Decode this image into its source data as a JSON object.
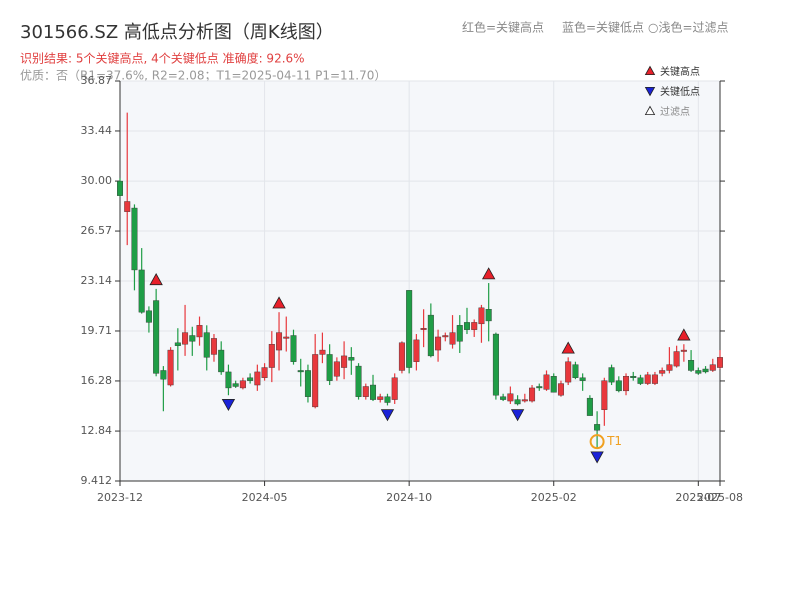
{
  "chart_data": {
    "type": "candlestick",
    "title": "301566.SZ 高低点分析图（周K线图）",
    "header_legend": [
      "红色=关键高点",
      "蓝色=关键低点",
      "○浅色=过滤点"
    ],
    "subtitle": "识别结果: 5个关键高点, 4个关键低点  准确度: 92.6%",
    "note": "优质：否（R1=37.6%, R2=2.08；T1=2025-04-11 P1=11.70）",
    "up_color": "#e8383d",
    "down_color": "#1f9d46",
    "ylim": [
      9.412,
      36.87
    ],
    "yticks": [
      9.412,
      12.84,
      16.28,
      19.71,
      23.14,
      26.57,
      {
        "value": 30,
        "label": "30.00"
      },
      33.44,
      36.87
    ],
    "grid": true,
    "categories": [
      "2023-12",
      null,
      null,
      null,
      null,
      null,
      null,
      null,
      null,
      null,
      null,
      null,
      null,
      null,
      null,
      null,
      null,
      null,
      null,
      null,
      "2024-05",
      null,
      null,
      null,
      null,
      null,
      null,
      null,
      null,
      null,
      null,
      null,
      null,
      null,
      null,
      null,
      null,
      null,
      null,
      null,
      "2024-10",
      null,
      null,
      null,
      null,
      null,
      null,
      null,
      null,
      null,
      null,
      null,
      null,
      null,
      null,
      null,
      null,
      null,
      null,
      null,
      "2025-02",
      null,
      null,
      null,
      null,
      null,
      null,
      null,
      null,
      null,
      null,
      null,
      null,
      null,
      null,
      null,
      null,
      null,
      null,
      null,
      "2025-07",
      null,
      null,
      "2025-08"
    ],
    "open": [
      30.0,
      27.9,
      28.15,
      23.9,
      21.1,
      21.8,
      17.0,
      16.0,
      18.9,
      18.8,
      19.4,
      19.3,
      19.6,
      18.1,
      18.4,
      16.9,
      16.1,
      15.8,
      16.5,
      16.0,
      16.5,
      17.2,
      18.4,
      19.2,
      19.4,
      17.0,
      17.0,
      14.5,
      18.1,
      18.1,
      16.6,
      17.2,
      17.9,
      17.3,
      15.2,
      16.0,
      15.0,
      15.2,
      15.0,
      17.0,
      22.5,
      17.6,
      19.8,
      20.8,
      18.4,
      19.3,
      18.8,
      20.1,
      20.3,
      19.8,
      20.2,
      21.2,
      19.5,
      15.2,
      14.9,
      15.0,
      14.9,
      14.9,
      15.9,
      15.7,
      16.6,
      15.3,
      16.2,
      17.4,
      16.5,
      15.1,
      13.3,
      14.3,
      17.2,
      16.3,
      15.6,
      16.6,
      16.5,
      16.1,
      16.1,
      16.8,
      17.0,
      17.3,
      18.3,
      17.7,
      17.0,
      17.1,
      17.0,
      17.2
    ],
    "high": [
      30.2,
      34.7,
      28.4,
      25.4,
      21.4,
      22.6,
      17.3,
      18.6,
      19.9,
      21.5,
      20.0,
      20.7,
      20.1,
      19.5,
      19.0,
      17.4,
      16.3,
      16.5,
      16.8,
      17.4,
      17.5,
      19.7,
      21.0,
      20.7,
      19.8,
      17.8,
      17.4,
      19.5,
      19.6,
      18.8,
      17.9,
      19.0,
      18.6,
      17.5,
      16.1,
      16.7,
      15.4,
      15.4,
      16.8,
      19.0,
      22.5,
      19.5,
      21.2,
      21.6,
      19.8,
      19.6,
      20.8,
      20.8,
      21.3,
      20.5,
      21.5,
      23.0,
      19.6,
      15.4,
      15.9,
      15.3,
      15.4,
      16.0,
      16.1,
      17.0,
      16.8,
      16.3,
      17.9,
      17.6,
      16.8,
      15.3,
      14.2,
      16.5,
      17.4,
      16.6,
      16.8,
      16.9,
      16.7,
      16.9,
      16.9,
      17.2,
      18.6,
      18.7,
      18.8,
      18.4,
      17.2,
      17.3,
      17.8,
      18.4
    ],
    "low": [
      28.9,
      25.6,
      22.5,
      20.9,
      19.6,
      16.6,
      14.2,
      15.9,
      17.0,
      18.0,
      18.0,
      18.7,
      17.0,
      17.6,
      16.7,
      15.3,
      15.8,
      15.7,
      16.1,
      15.6,
      16.3,
      16.2,
      17.0,
      18.3,
      17.4,
      15.9,
      14.8,
      14.4,
      17.5,
      16.0,
      16.3,
      16.4,
      16.7,
      15.0,
      15.0,
      14.9,
      14.8,
      14.6,
      14.7,
      16.8,
      16.8,
      17.0,
      18.6,
      17.9,
      17.6,
      19.0,
      18.5,
      18.2,
      19.5,
      19.3,
      18.9,
      19.0,
      15.0,
      14.9,
      14.7,
      14.6,
      14.8,
      14.8,
      15.6,
      15.6,
      15.5,
      15.2,
      16.0,
      16.4,
      15.6,
      13.9,
      11.7,
      13.2,
      16.0,
      15.5,
      15.3,
      16.3,
      16.0,
      16.0,
      16.0,
      16.6,
      16.8,
      17.2,
      17.6,
      16.9,
      16.7,
      16.8,
      16.9,
      17.1
    ],
    "close": [
      29.0,
      28.6,
      23.9,
      21.0,
      20.3,
      16.8,
      16.4,
      18.4,
      18.7,
      19.6,
      19.0,
      20.1,
      17.9,
      19.2,
      16.9,
      15.8,
      15.9,
      16.3,
      16.3,
      16.9,
      17.2,
      18.8,
      19.6,
      19.3,
      17.6,
      16.9,
      15.2,
      18.1,
      18.4,
      16.3,
      17.6,
      18.0,
      17.7,
      15.2,
      15.9,
      15.0,
      15.2,
      14.8,
      16.5,
      18.9,
      17.2,
      19.1,
      19.9,
      18.0,
      19.3,
      19.4,
      19.6,
      19.0,
      19.8,
      20.3,
      21.3,
      20.4,
      15.3,
      15.0,
      15.4,
      14.7,
      15.0,
      15.8,
      15.8,
      16.7,
      15.5,
      16.1,
      17.6,
      16.5,
      16.3,
      13.9,
      12.9,
      16.3,
      16.2,
      15.6,
      16.6,
      16.5,
      16.1,
      16.7,
      16.7,
      17.0,
      17.4,
      18.3,
      18.4,
      17.0,
      16.8,
      16.9,
      17.4,
      17.9
    ],
    "markers": [
      {
        "name": "关键高点",
        "color": "#e8202a",
        "direction": "up",
        "values": [
          null,
          null,
          null,
          null,
          null,
          22.6,
          null,
          null,
          null,
          null,
          null,
          null,
          null,
          null,
          null,
          null,
          null,
          null,
          null,
          null,
          null,
          null,
          21.0,
          null,
          null,
          null,
          null,
          null,
          null,
          null,
          null,
          null,
          null,
          null,
          null,
          null,
          null,
          null,
          null,
          null,
          null,
          null,
          null,
          null,
          null,
          null,
          null,
          null,
          null,
          null,
          null,
          23.0,
          null,
          null,
          null,
          null,
          null,
          null,
          null,
          null,
          null,
          null,
          17.9,
          null,
          null,
          null,
          null,
          null,
          null,
          null,
          null,
          null,
          null,
          null,
          null,
          null,
          null,
          null,
          18.8,
          null,
          null,
          null,
          null,
          null
        ]
      },
      {
        "name": "关键低点",
        "color": "#1a22d8",
        "direction": "down",
        "values": [
          null,
          null,
          null,
          null,
          null,
          null,
          null,
          null,
          null,
          null,
          null,
          null,
          null,
          null,
          null,
          15.3,
          null,
          null,
          null,
          null,
          null,
          null,
          null,
          null,
          null,
          null,
          null,
          null,
          null,
          null,
          null,
          null,
          null,
          null,
          null,
          null,
          null,
          14.6,
          null,
          null,
          null,
          null,
          null,
          null,
          null,
          null,
          null,
          null,
          null,
          null,
          null,
          null,
          null,
          null,
          null,
          14.6,
          null,
          null,
          null,
          null,
          null,
          null,
          null,
          null,
          null,
          null,
          11.7,
          null,
          null,
          null,
          null,
          null,
          null,
          null,
          null,
          null,
          null,
          null,
          null,
          null,
          null,
          null,
          null,
          null
        ]
      },
      {
        "name": "过滤点",
        "color": "#ffffff",
        "direction": "up"
      }
    ],
    "annotation": {
      "text": "T1",
      "x": 66,
      "y": 11.7,
      "color": "#f0a020"
    }
  }
}
